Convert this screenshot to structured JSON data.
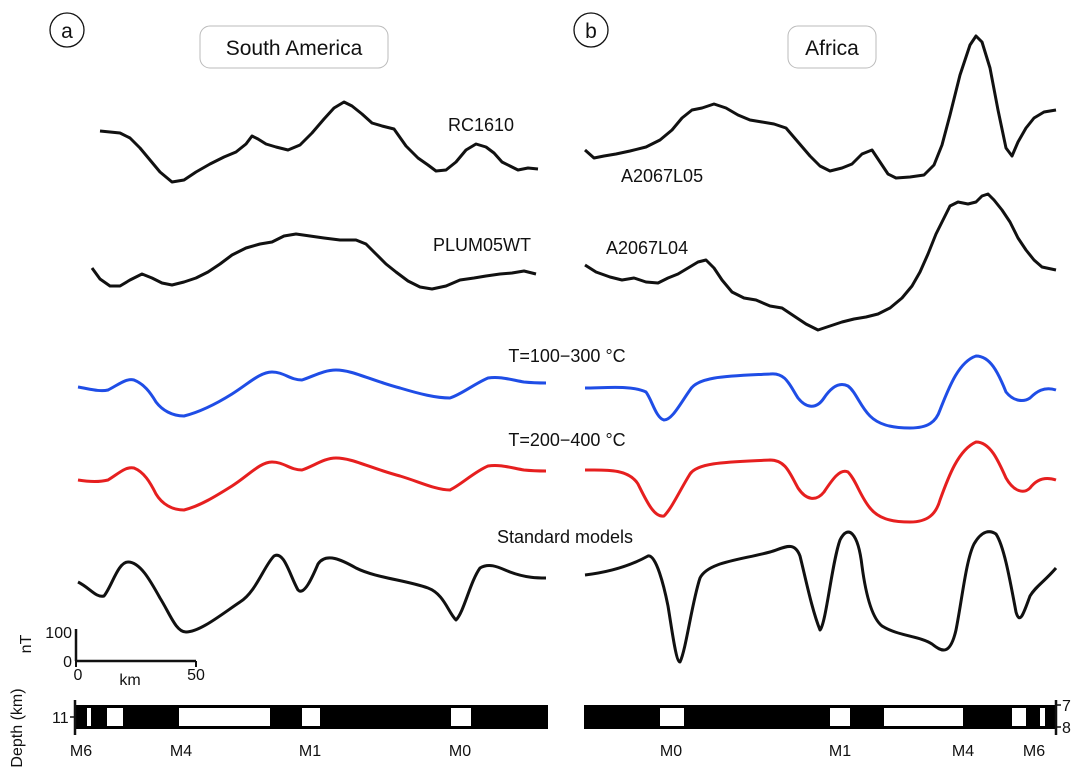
{
  "panels": [
    {
      "letter": "a",
      "region": "South America",
      "profiles": [
        {
          "name": "RC1610"
        },
        {
          "name": "PLUM05WT"
        }
      ],
      "chrons": [
        "M6",
        "M4",
        "M1",
        "M0"
      ]
    },
    {
      "letter": "b",
      "region": "Africa",
      "profiles": [
        {
          "name": "A2067L05"
        },
        {
          "name": "A2067L04"
        }
      ],
      "chrons": [
        "M0",
        "M1",
        "M4",
        "M6"
      ]
    }
  ],
  "models": {
    "t100": {
      "label": "T=100−300 °C",
      "color": "#1f4de6"
    },
    "t200": {
      "label": "T=200−400 °C",
      "color": "#e61f1f"
    },
    "standard": {
      "label": "Standard models",
      "color": "#111111"
    }
  },
  "scale_bar": {
    "y_unit": "nT",
    "y_ticks": [
      "100",
      "0"
    ],
    "x_unit": "km",
    "x_ticks": [
      "0",
      "50"
    ]
  },
  "depth_axis": {
    "label": "Depth (km)",
    "left_tick": "11",
    "right_ticks": [
      "7",
      "8"
    ]
  }
}
